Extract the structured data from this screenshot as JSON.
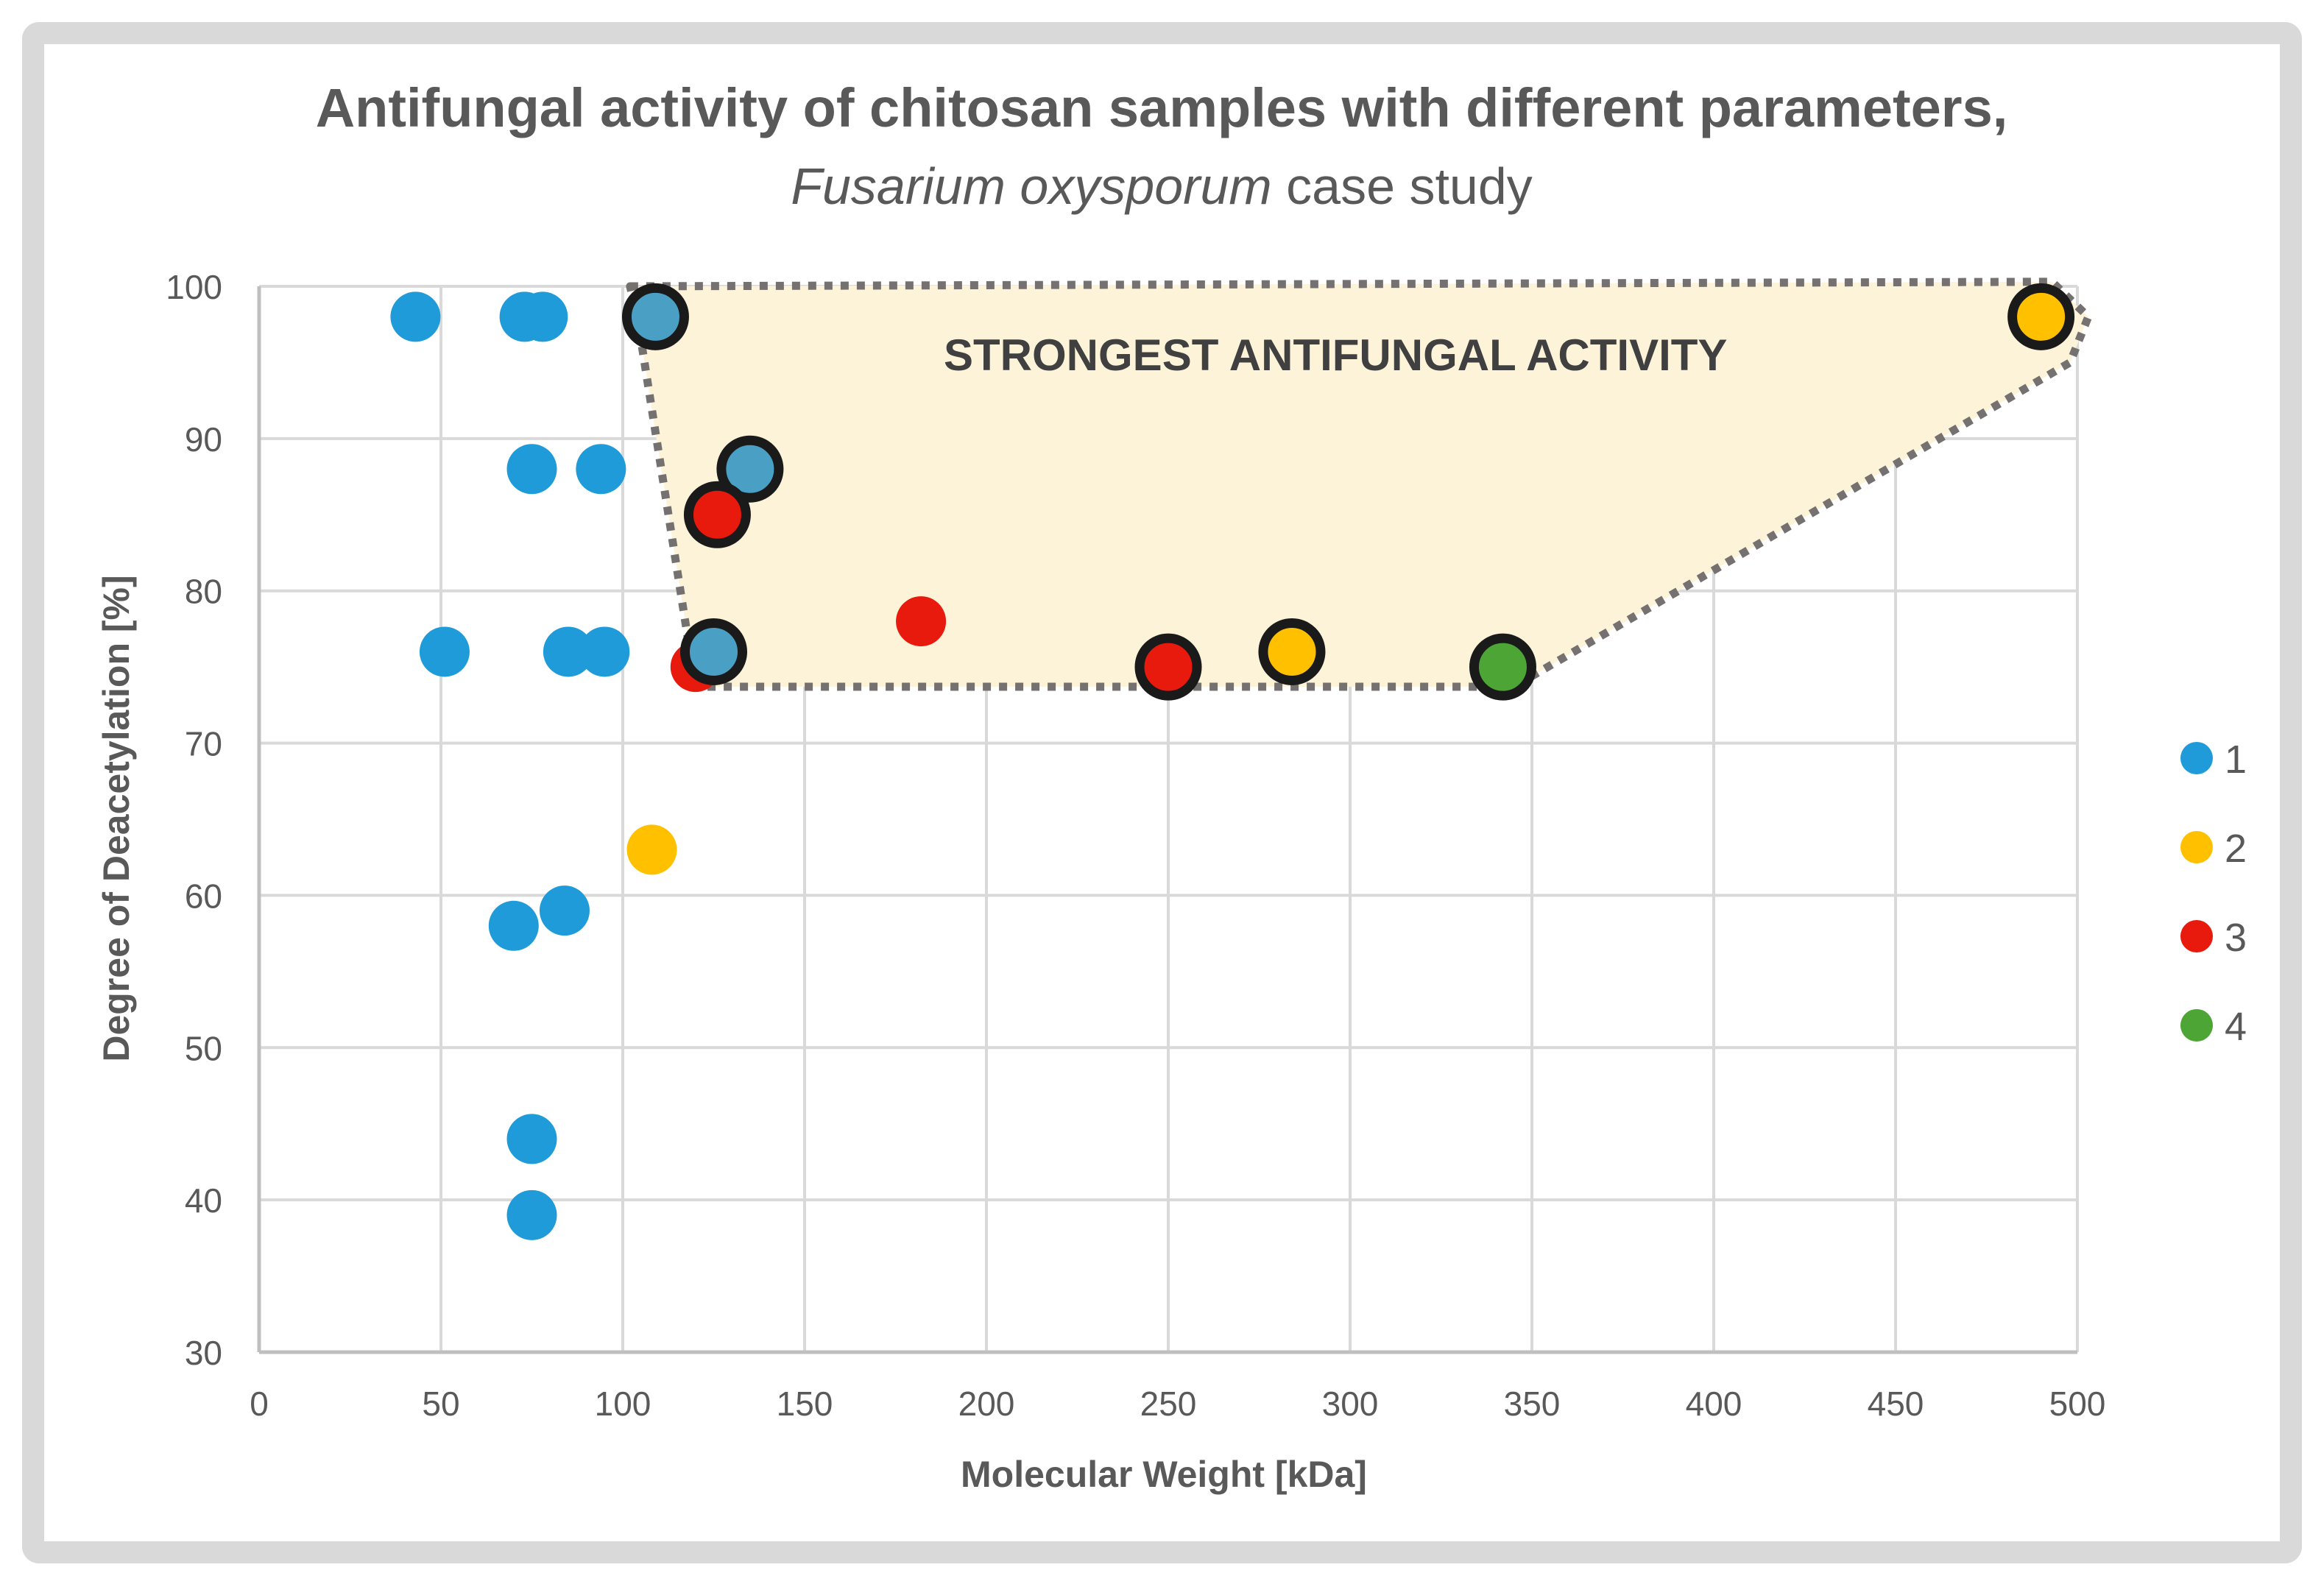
{
  "chart_data": {
    "type": "scatter",
    "title": "Antifungal activity of chitosan samples with different parameters,",
    "subtitle_italic": "Fusarium oxysporum",
    "subtitle_rest": " case study",
    "xlabel": "Molecular Weight [kDa]",
    "ylabel": "Degree of Deacetylation [%]",
    "xlim": [
      0,
      500
    ],
    "ylim": [
      30,
      100
    ],
    "xticks": [
      0,
      50,
      100,
      150,
      200,
      250,
      300,
      350,
      400,
      450,
      500
    ],
    "yticks": [
      30,
      40,
      50,
      60,
      70,
      80,
      90,
      100
    ],
    "grid": true,
    "legend_position": "right",
    "series": [
      {
        "name": "1",
        "color": "#1f9bd9",
        "points": [
          {
            "x": 43,
            "y": 98,
            "highlight": false
          },
          {
            "x": 73,
            "y": 98,
            "highlight": false
          },
          {
            "x": 78,
            "y": 98,
            "highlight": false
          },
          {
            "x": 75,
            "y": 88,
            "highlight": false
          },
          {
            "x": 94,
            "y": 88,
            "highlight": false
          },
          {
            "x": 51,
            "y": 76,
            "highlight": false
          },
          {
            "x": 85,
            "y": 76,
            "highlight": false
          },
          {
            "x": 95,
            "y": 76,
            "highlight": false
          },
          {
            "x": 70,
            "y": 58,
            "highlight": false
          },
          {
            "x": 84,
            "y": 59,
            "highlight": false
          },
          {
            "x": 75,
            "y": 44,
            "highlight": false
          },
          {
            "x": 75,
            "y": 39,
            "highlight": false
          },
          {
            "x": 109,
            "y": 98,
            "highlight": true
          },
          {
            "x": 135,
            "y": 88,
            "highlight": true
          },
          {
            "x": 125,
            "y": 76,
            "highlight": true
          }
        ]
      },
      {
        "name": "2",
        "color": "#ffc000",
        "points": [
          {
            "x": 108,
            "y": 63,
            "highlight": false
          },
          {
            "x": 284,
            "y": 76,
            "highlight": true
          },
          {
            "x": 490,
            "y": 98,
            "highlight": true
          }
        ]
      },
      {
        "name": "3",
        "color": "#e8190d",
        "points": [
          {
            "x": 120,
            "y": 75,
            "highlight": false
          },
          {
            "x": 182,
            "y": 78,
            "highlight": false
          },
          {
            "x": 126,
            "y": 85,
            "highlight": true
          },
          {
            "x": 250,
            "y": 75,
            "highlight": true
          }
        ]
      },
      {
        "name": "4",
        "color": "#4ca534",
        "points": [
          {
            "x": 342,
            "y": 75,
            "highlight": true
          }
        ]
      }
    ],
    "region": {
      "label": "STRONGEST ANTIFUNGAL ACTIVITY",
      "fill_color": "#fdf3d9",
      "border_color": "#767171",
      "polygon": [
        {
          "x": 102,
          "y": 100
        },
        {
          "x": 493,
          "y": 100.3
        },
        {
          "x": 503,
          "y": 98
        },
        {
          "x": 498,
          "y": 95
        },
        {
          "x": 345,
          "y": 73.7
        },
        {
          "x": 120,
          "y": 73.7
        },
        {
          "x": 104,
          "y": 98
        }
      ],
      "label_position": {
        "x": 296,
        "y": 95.5
      }
    }
  }
}
